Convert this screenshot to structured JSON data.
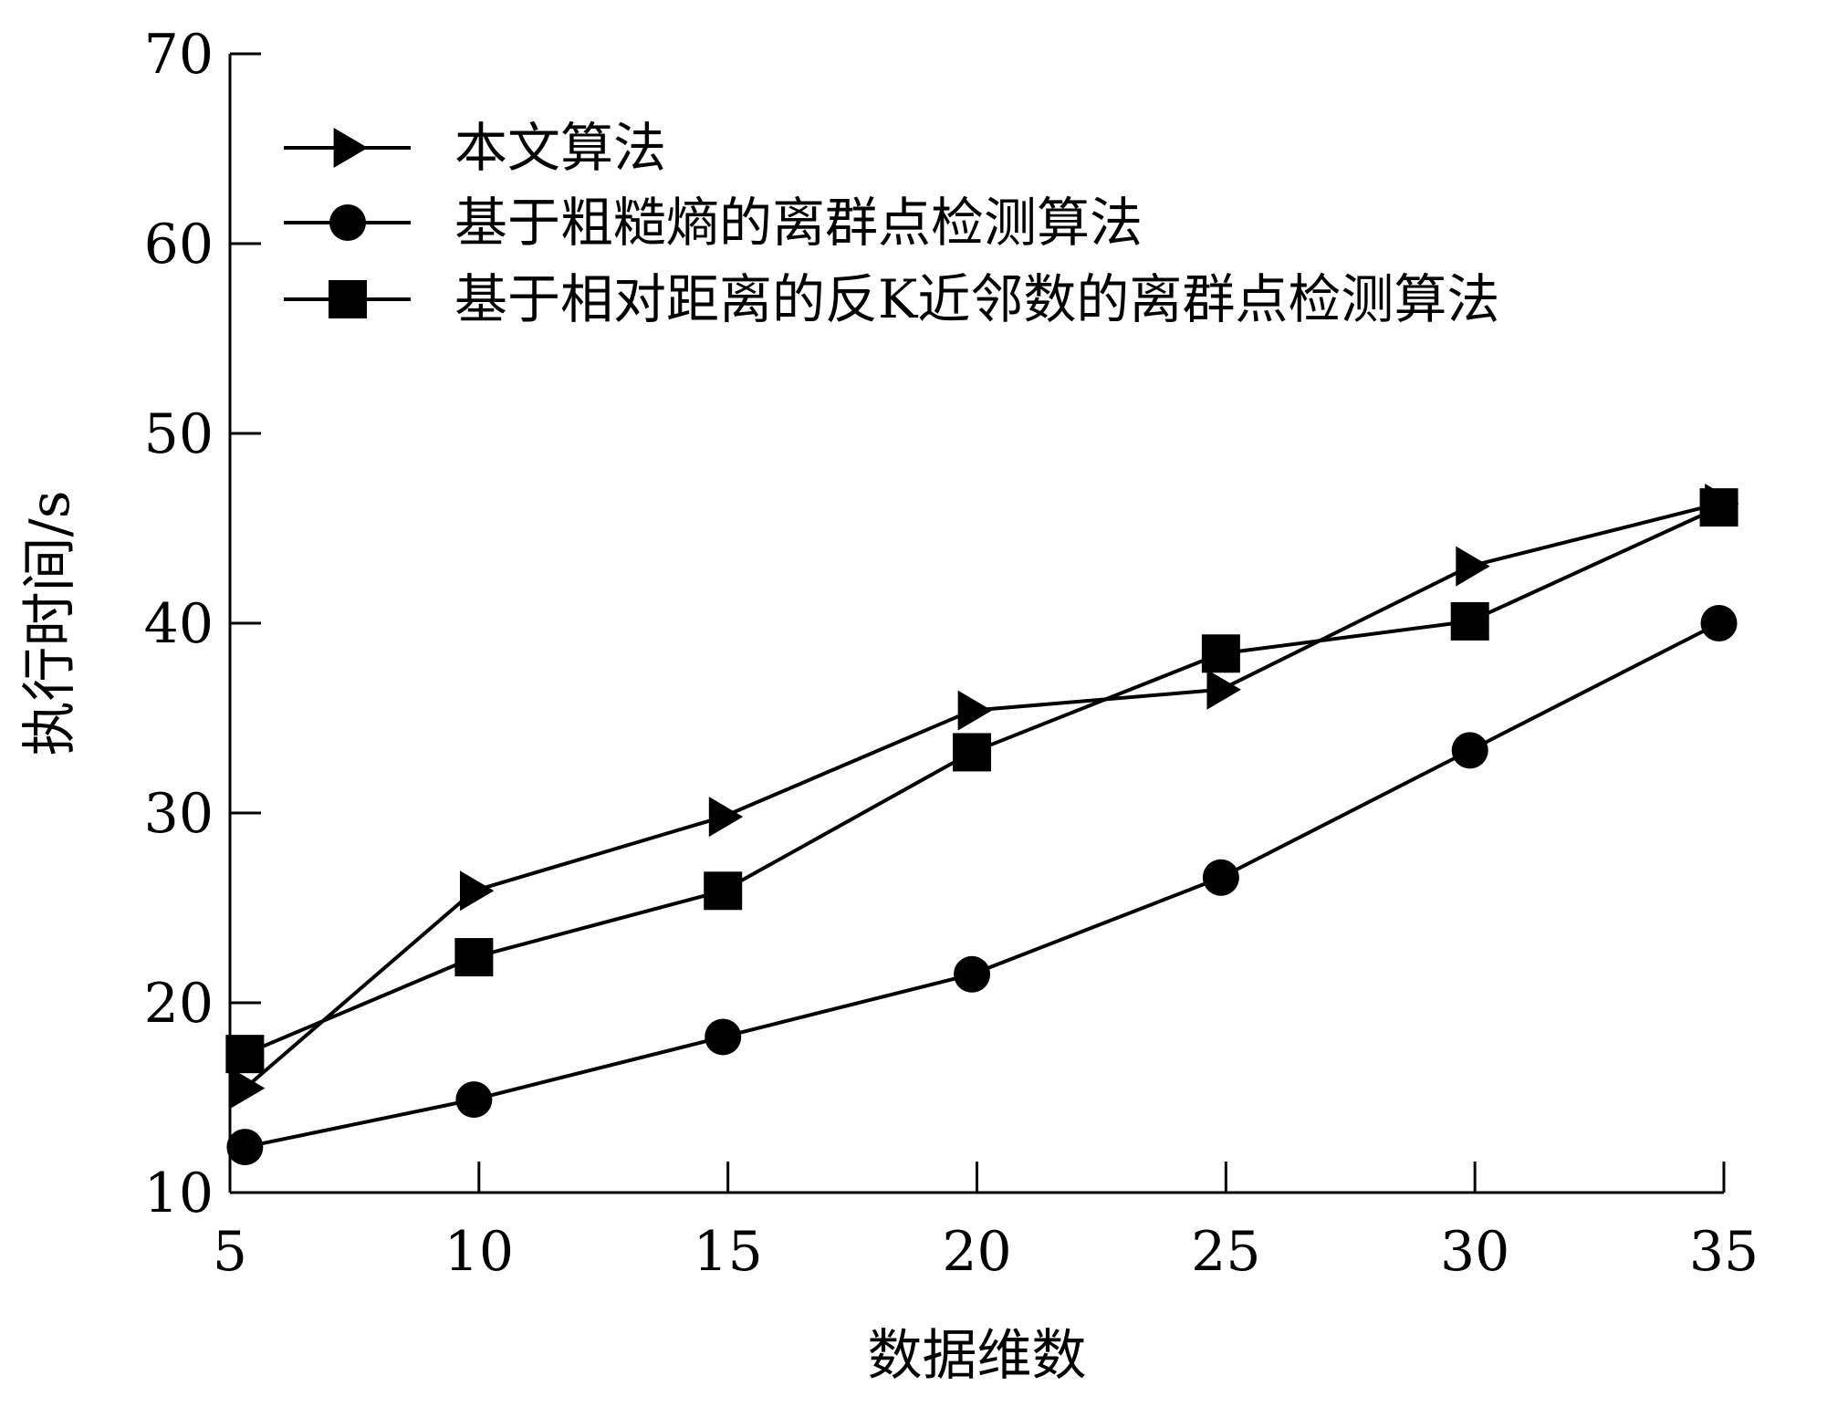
{
  "chart_data": {
    "type": "line",
    "xlabel": "数据维数",
    "ylabel": "执行时间/s",
    "xlim": [
      5,
      35
    ],
    "ylim": [
      10,
      70
    ],
    "xticks": [
      "5",
      "10",
      "15",
      "20",
      "25",
      "30",
      "35"
    ],
    "yticks": [
      "10",
      "20",
      "30",
      "40",
      "50",
      "60",
      "70"
    ],
    "grid": false,
    "legend_position": "top-left",
    "colors": {
      "line": "#000000",
      "background": "#ffffff"
    },
    "series": [
      {
        "name": "本文算法",
        "marker": "triangle-right",
        "x": [
          5.3,
          9.9,
          14.9,
          19.9,
          24.9,
          29.9,
          34.9
        ],
        "y": [
          15.5,
          25.9,
          29.8,
          35.4,
          36.5,
          43.0,
          46.3
        ]
      },
      {
        "name": "基于粗糙熵的离群点检测算法",
        "marker": "circle",
        "x": [
          5.3,
          9.9,
          14.9,
          19.9,
          24.9,
          29.9,
          34.9
        ],
        "y": [
          12.4,
          14.9,
          18.2,
          21.5,
          26.6,
          33.3,
          40.0
        ]
      },
      {
        "name": "基于相对距离的反K近邻数的离群点检测算法",
        "marker": "square",
        "x": [
          5.3,
          9.9,
          14.9,
          19.9,
          24.9,
          29.9,
          34.9
        ],
        "y": [
          17.3,
          22.4,
          25.9,
          33.2,
          38.4,
          40.1,
          46.1
        ]
      }
    ]
  }
}
